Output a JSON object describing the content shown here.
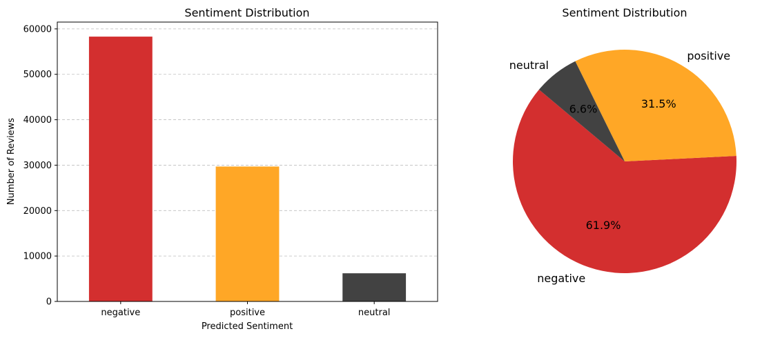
{
  "chart_data": [
    {
      "type": "bar",
      "title": "Sentiment Distribution",
      "xlabel": "Predicted Sentiment",
      "ylabel": "Number of Reviews",
      "categories": [
        "negative",
        "positive",
        "neutral"
      ],
      "values": [
        58300,
        29700,
        6200
      ],
      "colors": [
        "#d32f2f",
        "#ffa726",
        "#424242"
      ],
      "ylim": [
        0,
        61500
      ],
      "yticks": [
        0,
        10000,
        20000,
        30000,
        40000,
        50000,
        60000
      ],
      "ytick_labels": [
        "0",
        "10000",
        "20000",
        "30000",
        "40000",
        "50000",
        "60000"
      ],
      "grid": "y-dashed"
    },
    {
      "type": "pie",
      "title": "Sentiment Distribution",
      "labels": [
        "negative",
        "positive",
        "neutral"
      ],
      "values": [
        61.9,
        31.5,
        6.6
      ],
      "pct_labels": [
        "61.9%",
        "31.5%",
        "6.6%"
      ],
      "colors": [
        "#d32f2f",
        "#ffa726",
        "#424242"
      ]
    }
  ]
}
